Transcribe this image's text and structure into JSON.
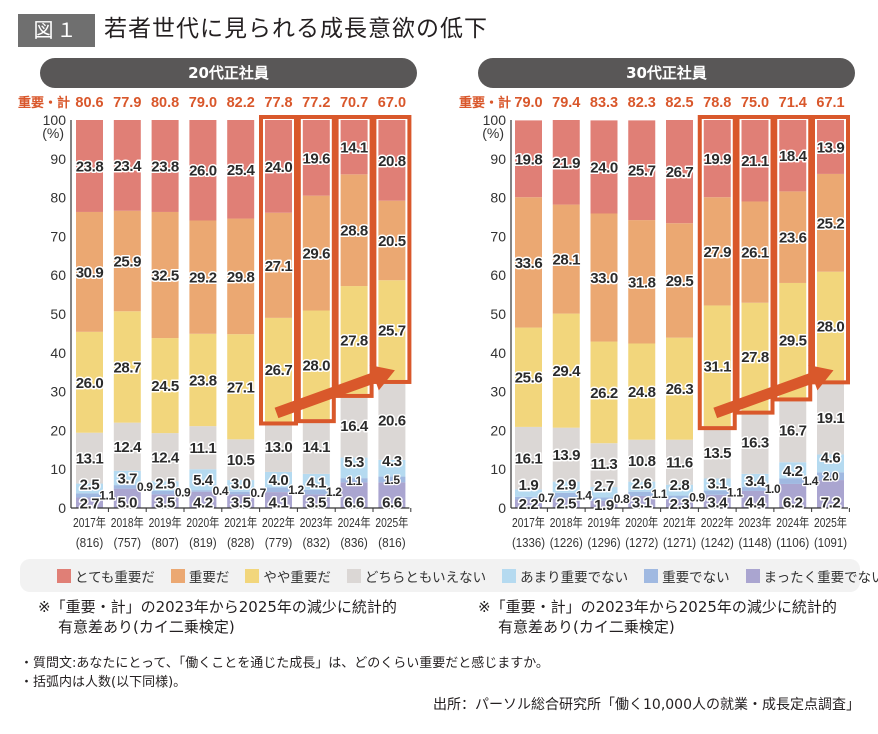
{
  "figure": {
    "badge": "図１",
    "title": "若者世代に見られる成長意欲の低下"
  },
  "legend": [
    {
      "label": "とても重要だ",
      "color": "#e07f76"
    },
    {
      "label": "重要だ",
      "color": "#eba872"
    },
    {
      "label": "やや重要だ",
      "color": "#f2d67c"
    },
    {
      "label": "どちらともいえない",
      "color": "#dbd7d5"
    },
    {
      "label": "あまり重要でない",
      "color": "#b5daf0"
    },
    {
      "label": "重要でない",
      "color": "#a0b9e1"
    },
    {
      "label": "まったく重要でない",
      "color": "#aaa5d0"
    }
  ],
  "notes": {
    "significance_left": [
      "※「重要・計」の2023年から2025年の減少に統計的",
      "有意差あり(カイ二乗検定)"
    ],
    "significance_right": [
      "※「重要・計」の2023年から2025年の減少に統計的",
      "有意差あり(カイ二乗検定)"
    ],
    "question": "・質問文:あなたにとって、「働くことを通じた成長」は、どのくらい重要だと感じますか。",
    "parentheses": "・括弧内は人数(以下同様)。",
    "source": "出所：パーソル総合研究所「働く10,000人の就業・成長定点調査」"
  },
  "highlight_color": "#d9582b",
  "chart_data": [
    {
      "type": "bar",
      "stacked": true,
      "title": "20代正社員",
      "xlabel": "",
      "ylabel": "(%)",
      "ylim": [
        0,
        100
      ],
      "yticks": [
        0,
        10,
        20,
        30,
        40,
        50,
        60,
        70,
        80,
        90,
        100
      ],
      "categories": [
        "2017年",
        "2018年",
        "2019年",
        "2020年",
        "2021年",
        "2022年",
        "2023年",
        "2024年",
        "2025年"
      ],
      "sample_sizes": [
        816,
        757,
        807,
        819,
        828,
        779,
        832,
        836,
        816
      ],
      "total_label": "重要・計",
      "totals": [
        80.6,
        77.9,
        80.8,
        79.0,
        82.2,
        77.8,
        77.2,
        70.7,
        67.0
      ],
      "series": [
        {
          "name": "とても重要だ",
          "color": "#e07f76",
          "values": [
            23.8,
            23.4,
            23.8,
            26.0,
            25.4,
            24.0,
            19.6,
            14.1,
            20.8
          ]
        },
        {
          "name": "重要だ",
          "color": "#eba872",
          "values": [
            30.9,
            25.9,
            32.5,
            29.2,
            29.8,
            27.1,
            29.6,
            28.8,
            20.5
          ]
        },
        {
          "name": "やや重要だ",
          "color": "#f2d67c",
          "values": [
            26.0,
            28.7,
            24.5,
            23.8,
            27.1,
            26.7,
            28.0,
            27.8,
            25.7
          ]
        },
        {
          "name": "どちらともいえない",
          "color": "#dbd7d5",
          "values": [
            13.1,
            12.4,
            12.4,
            11.1,
            10.5,
            13.0,
            14.1,
            16.4,
            20.6
          ]
        },
        {
          "name": "あまり重要でない",
          "color": "#b5daf0",
          "values": [
            2.5,
            3.7,
            2.5,
            5.4,
            3.0,
            4.0,
            4.1,
            5.3,
            4.3
          ]
        },
        {
          "name": "重要でない",
          "color": "#a0b9e1",
          "values": [
            1.1,
            0.9,
            0.9,
            0.4,
            0.7,
            1.2,
            1.2,
            1.1,
            1.5
          ]
        },
        {
          "name": "まったく重要でない",
          "color": "#aaa5d0",
          "values": [
            2.7,
            5.0,
            3.5,
            4.2,
            3.5,
            4.1,
            3.5,
            6.6,
            6.6
          ]
        }
      ],
      "highlight_categories": [
        "2022年",
        "2023年",
        "2024年",
        "2025年"
      ],
      "highlight_series": [
        "とても重要だ",
        "重要だ",
        "やや重要だ"
      ],
      "trend_arrow": {
        "from": "2022年",
        "to": "2025年",
        "direction": "up"
      },
      "legend": "bottom"
    },
    {
      "type": "bar",
      "stacked": true,
      "title": "30代正社員",
      "xlabel": "",
      "ylabel": "(%)",
      "ylim": [
        0,
        100
      ],
      "yticks": [
        0,
        10,
        20,
        30,
        40,
        50,
        60,
        70,
        80,
        90,
        100
      ],
      "categories": [
        "2017年",
        "2018年",
        "2019年",
        "2020年",
        "2021年",
        "2022年",
        "2023年",
        "2024年",
        "2025年"
      ],
      "sample_sizes": [
        1336,
        1226,
        1296,
        1272,
        1271,
        1242,
        1148,
        1106,
        1091
      ],
      "total_label": "重要・計",
      "totals": [
        79.0,
        79.4,
        83.3,
        82.3,
        82.5,
        78.8,
        75.0,
        71.4,
        67.1
      ],
      "series": [
        {
          "name": "とても重要だ",
          "color": "#e07f76",
          "values": [
            19.8,
            21.9,
            24.0,
            25.7,
            26.7,
            19.9,
            21.1,
            18.4,
            13.9
          ]
        },
        {
          "name": "重要だ",
          "color": "#eba872",
          "values": [
            33.6,
            28.1,
            33.0,
            31.8,
            29.5,
            27.9,
            26.1,
            23.6,
            25.2
          ]
        },
        {
          "name": "やや重要だ",
          "color": "#f2d67c",
          "values": [
            25.6,
            29.4,
            26.2,
            24.8,
            26.3,
            31.1,
            27.8,
            29.5,
            28.0
          ]
        },
        {
          "name": "どちらともいえない",
          "color": "#dbd7d5",
          "values": [
            16.1,
            13.9,
            11.3,
            10.8,
            11.6,
            13.5,
            16.3,
            16.7,
            19.1
          ]
        },
        {
          "name": "あまり重要でない",
          "color": "#b5daf0",
          "values": [
            1.9,
            2.9,
            2.7,
            2.6,
            2.8,
            3.1,
            3.4,
            4.2,
            4.6
          ]
        },
        {
          "name": "重要でない",
          "color": "#a0b9e1",
          "values": [
            0.7,
            1.4,
            0.8,
            1.1,
            0.9,
            1.1,
            1.0,
            1.4,
            2.0
          ]
        },
        {
          "name": "まったく重要でない",
          "color": "#aaa5d0",
          "values": [
            2.2,
            2.5,
            1.9,
            3.1,
            2.3,
            3.4,
            4.4,
            6.2,
            7.2
          ]
        }
      ],
      "highlight_categories": [
        "2022年",
        "2023年",
        "2024年",
        "2025年"
      ],
      "highlight_series": [
        "とても重要だ",
        "重要だ",
        "やや重要だ"
      ],
      "trend_arrow": {
        "from": "2022年",
        "to": "2025年",
        "direction": "up"
      },
      "legend": "bottom"
    }
  ]
}
